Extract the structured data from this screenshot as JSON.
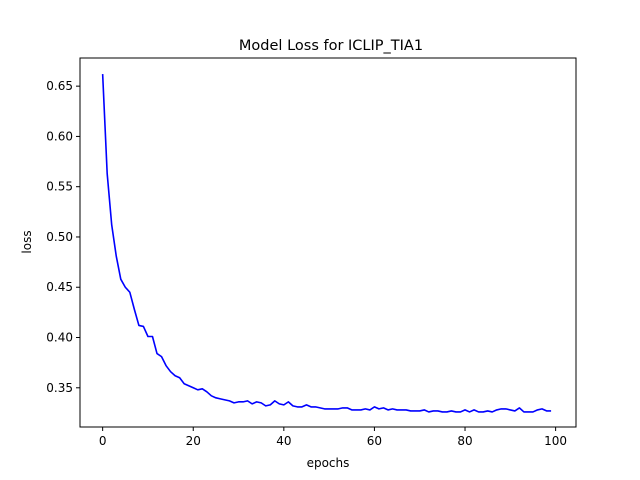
{
  "chart_data": {
    "type": "line",
    "title": "Model Loss for ICLIP_TIA1",
    "xlabel": "epochs",
    "ylabel": "loss",
    "xlim": [
      -5,
      104.5
    ],
    "ylim": [
      0.311,
      0.678
    ],
    "xticks": [
      0,
      20,
      40,
      60,
      80,
      100
    ],
    "yticks": [
      0.35,
      0.4,
      0.45,
      0.5,
      0.55,
      0.6,
      0.65
    ],
    "ytick_labels": [
      "0.35",
      "0.40",
      "0.45",
      "0.50",
      "0.55",
      "0.60",
      "0.65"
    ],
    "grid": false,
    "series": [
      {
        "color": "#0000ff",
        "x": [
          0,
          1,
          2,
          3,
          4,
          5,
          6,
          7,
          8,
          9,
          10,
          11,
          12,
          13,
          14,
          15,
          16,
          17,
          18,
          19,
          20,
          21,
          22,
          23,
          24,
          25,
          26,
          27,
          28,
          29,
          30,
          31,
          32,
          33,
          34,
          35,
          36,
          37,
          38,
          39,
          40,
          41,
          42,
          43,
          44,
          45,
          46,
          47,
          48,
          49,
          50,
          51,
          52,
          53,
          54,
          55,
          56,
          57,
          58,
          59,
          60,
          61,
          62,
          63,
          64,
          65,
          66,
          67,
          68,
          69,
          70,
          71,
          72,
          73,
          74,
          75,
          76,
          77,
          78,
          79,
          80,
          81,
          82,
          83,
          84,
          85,
          86,
          87,
          88,
          89,
          90,
          91,
          92,
          93,
          94,
          95,
          96,
          97,
          98,
          99
        ],
        "y": [
          0.662,
          0.563,
          0.512,
          0.481,
          0.458,
          0.45,
          0.445,
          0.428,
          0.412,
          0.411,
          0.401,
          0.401,
          0.384,
          0.381,
          0.372,
          0.366,
          0.362,
          0.36,
          0.354,
          0.352,
          0.35,
          0.348,
          0.349,
          0.346,
          0.342,
          0.34,
          0.339,
          0.338,
          0.337,
          0.335,
          0.336,
          0.336,
          0.337,
          0.334,
          0.336,
          0.335,
          0.332,
          0.333,
          0.337,
          0.334,
          0.333,
          0.336,
          0.332,
          0.331,
          0.331,
          0.333,
          0.331,
          0.331,
          0.33,
          0.329,
          0.329,
          0.329,
          0.329,
          0.33,
          0.33,
          0.328,
          0.328,
          0.328,
          0.329,
          0.328,
          0.331,
          0.329,
          0.33,
          0.328,
          0.329,
          0.328,
          0.328,
          0.328,
          0.327,
          0.327,
          0.327,
          0.328,
          0.326,
          0.327,
          0.327,
          0.326,
          0.326,
          0.327,
          0.326,
          0.326,
          0.328,
          0.326,
          0.328,
          0.326,
          0.326,
          0.327,
          0.326,
          0.328,
          0.329,
          0.329,
          0.328,
          0.327,
          0.33,
          0.326,
          0.326,
          0.326,
          0.328,
          0.329,
          0.327,
          0.327
        ]
      }
    ]
  }
}
